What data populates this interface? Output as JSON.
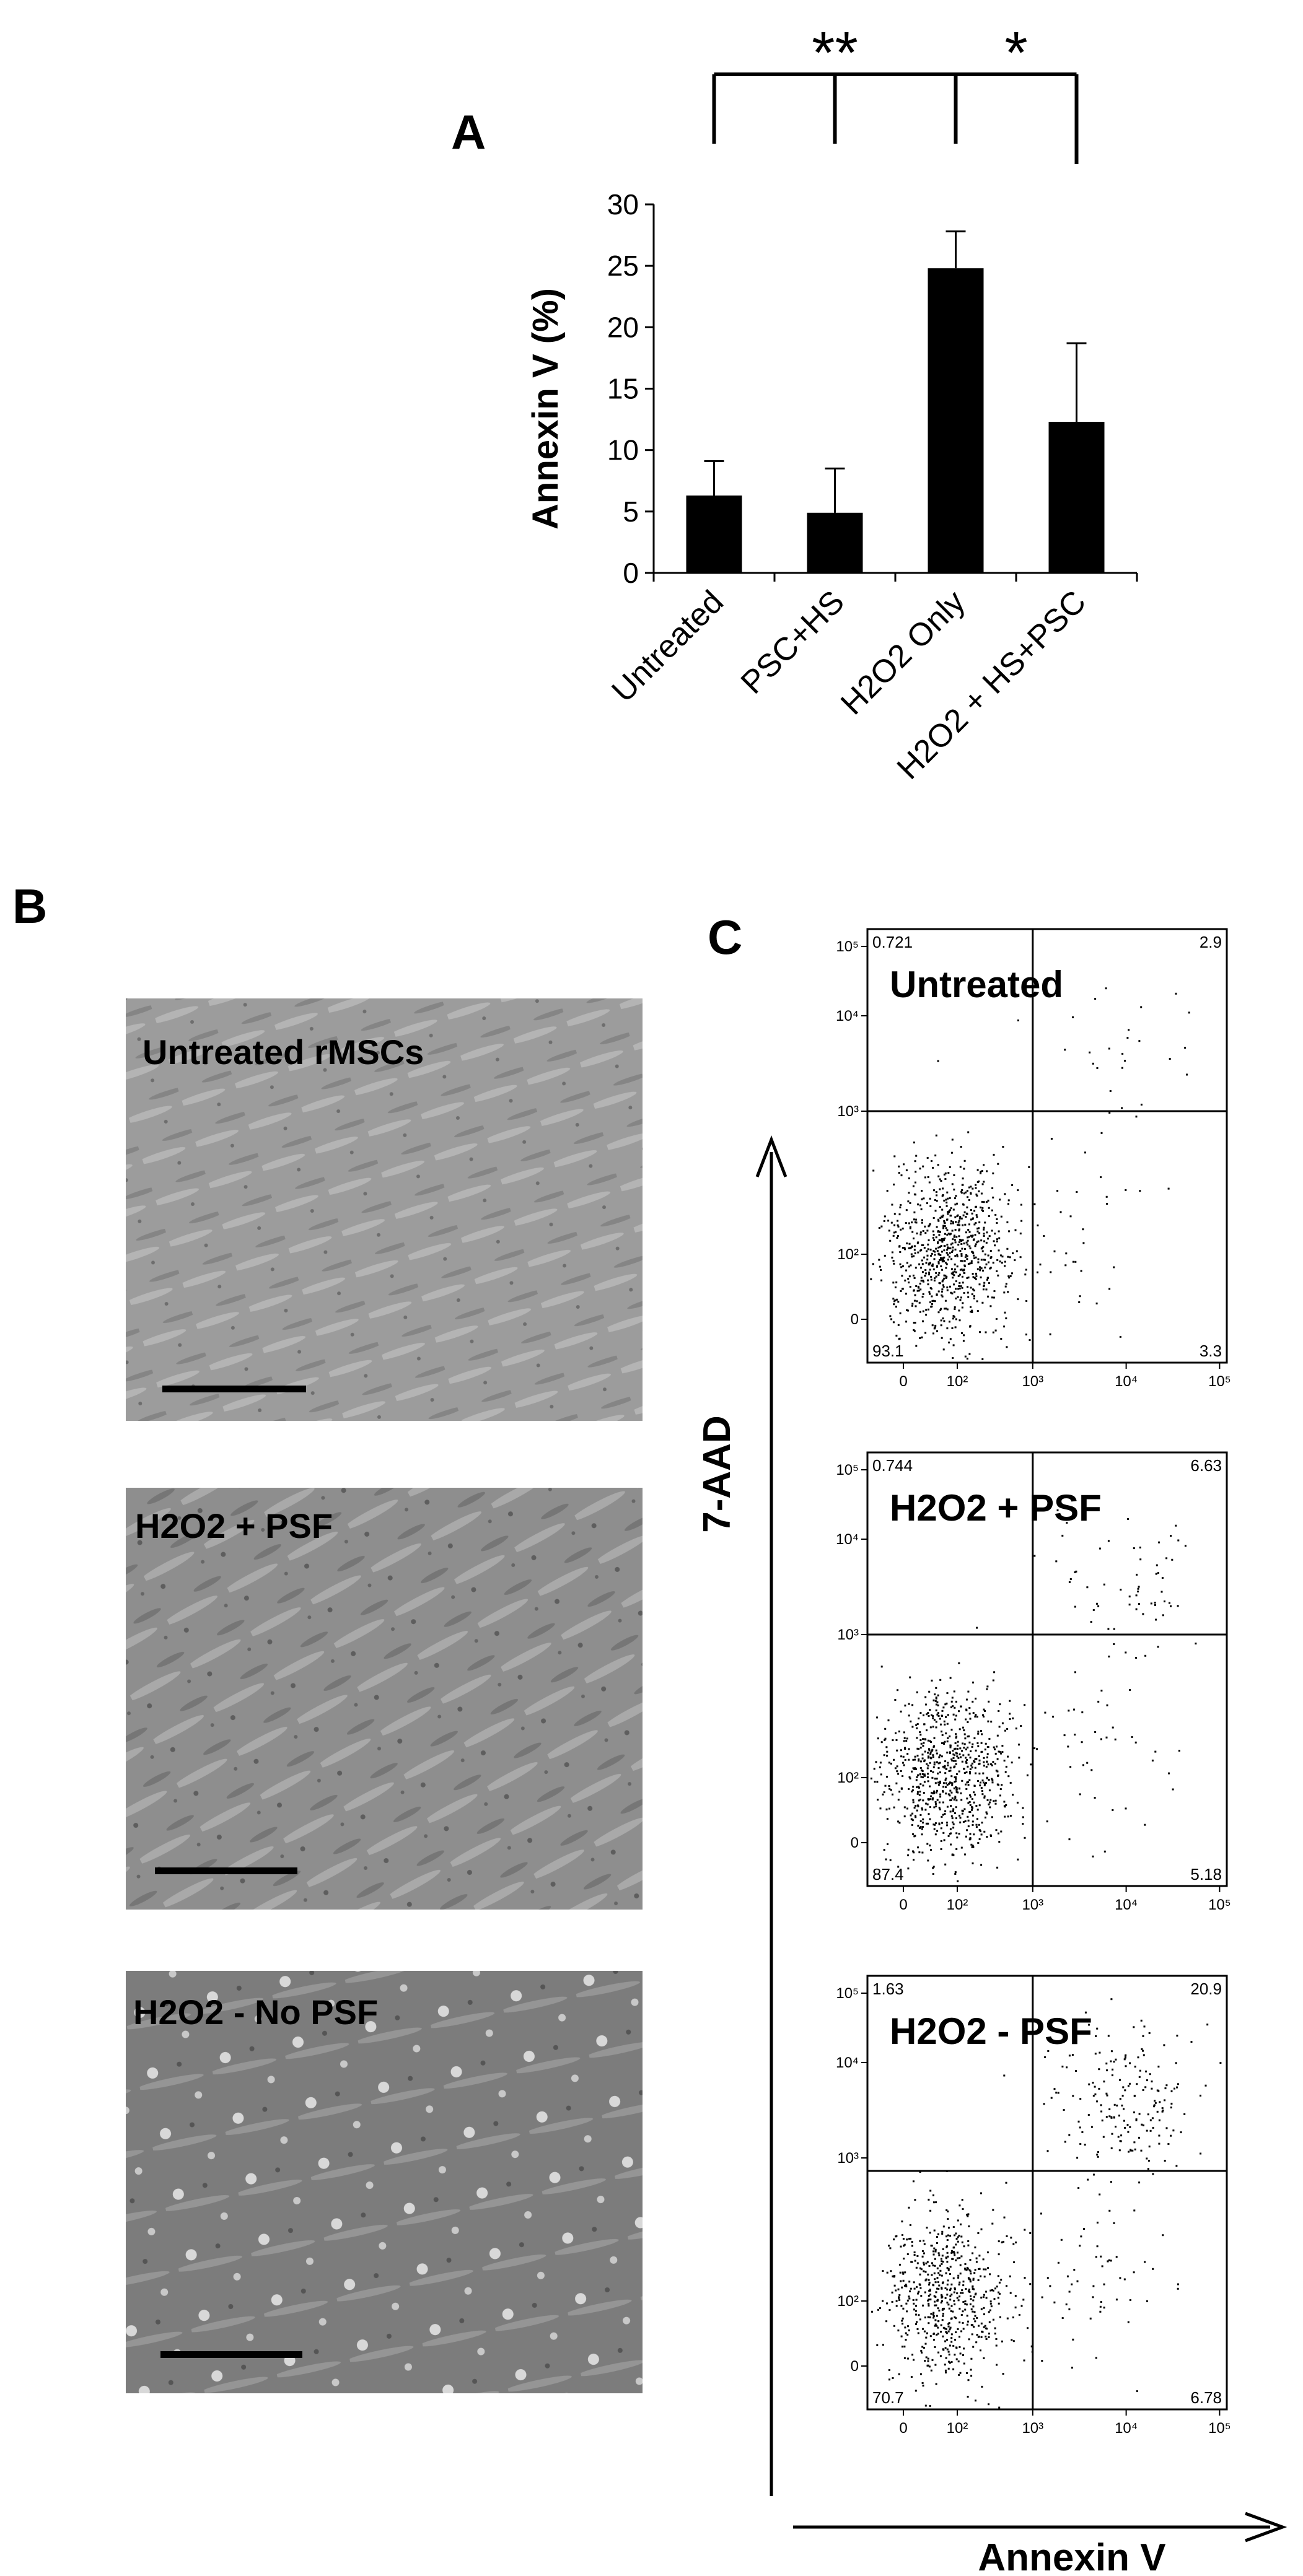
{
  "panels": {
    "a": "A",
    "b": "B",
    "c": "C"
  },
  "chart_data": [
    {
      "type": "bar",
      "categories": [
        "Untreated",
        "PSC+HS",
        "H2O2 Only",
        "H2O2 + HS+PSC"
      ],
      "values": [
        6.3,
        4.9,
        24.8,
        12.3
      ],
      "errors": [
        2.8,
        3.6,
        3.0,
        6.4
      ],
      "ylabel": "Annexin V (%)",
      "ylim": [
        0,
        30
      ],
      "yticks": [
        0,
        5,
        10,
        15,
        20,
        25,
        30
      ],
      "bar_color": "#000000",
      "significance": [
        {
          "label": "**",
          "from": "Untreated",
          "mid": "PSC+HS",
          "to": "H2O2 Only"
        },
        {
          "label": "*",
          "from": "H2O2 Only",
          "to": "H2O2 + HS+PSC"
        }
      ]
    },
    {
      "type": "scatter",
      "title": "Untreated",
      "xlabel": "Annexin V",
      "ylabel": "7-AAD",
      "x_ticks": [
        "0",
        "10²",
        "10³",
        "10⁴",
        "10⁵"
      ],
      "y_ticks": [
        "0",
        "10²",
        "10³",
        "10⁴",
        "10⁵"
      ],
      "quadrants": {
        "UL": "0.721",
        "UR": "2.9",
        "LL": "93.1",
        "LR": "3.3"
      }
    },
    {
      "type": "scatter",
      "title": "H2O2 + PSF",
      "xlabel": "Annexin V",
      "ylabel": "7-AAD",
      "x_ticks": [
        "0",
        "10²",
        "10³",
        "10⁴",
        "10⁵"
      ],
      "y_ticks": [
        "0",
        "10²",
        "10³",
        "10⁴",
        "10⁵"
      ],
      "quadrants": {
        "UL": "0.744",
        "UR": "6.63",
        "LL": "87.4",
        "LR": "5.18"
      }
    },
    {
      "type": "scatter",
      "title": "H2O2 - PSF",
      "xlabel": "Annexin V",
      "ylabel": "7-AAD",
      "x_ticks": [
        "0",
        "10²",
        "10³",
        "10⁴",
        "10⁵"
      ],
      "y_ticks": [
        "0",
        "10²",
        "10³",
        "10⁴",
        "10⁵"
      ],
      "quadrants": {
        "UL": "1.63",
        "UR": "20.9",
        "LL": "70.7",
        "LR": "6.78"
      }
    }
  ],
  "micrographs": [
    {
      "label": "Untreated rMSCs",
      "tone": "#9a9a9a"
    },
    {
      "label": "H2O2 + PSF",
      "tone": "#8c8c8c"
    },
    {
      "label": "H2O2 - No PSF",
      "tone": "#7a7a7a"
    }
  ],
  "flow_axes": {
    "y_label": "7-AAD",
    "x_label": "Annexin V"
  }
}
